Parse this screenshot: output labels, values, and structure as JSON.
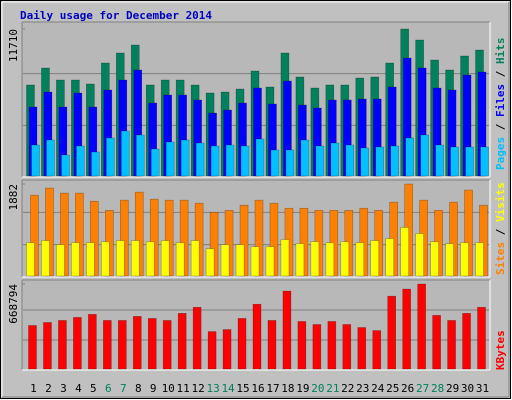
{
  "title": "Daily usage for December 2014",
  "separator": "/",
  "categories": [
    "1",
    "2",
    "3",
    "4",
    "5",
    "6",
    "7",
    "8",
    "9",
    "10",
    "11",
    "12",
    "13",
    "14",
    "15",
    "16",
    "17",
    "18",
    "19",
    "20",
    "21",
    "22",
    "23",
    "24",
    "25",
    "26",
    "27",
    "28",
    "29",
    "30",
    "31"
  ],
  "category_colors": [
    "#000000",
    "#000000",
    "#000000",
    "#000000",
    "#000000",
    "#00805c",
    "#00805c",
    "#000000",
    "#000000",
    "#000000",
    "#000000",
    "#000000",
    "#00805c",
    "#00805c",
    "#000000",
    "#000000",
    "#000000",
    "#000000",
    "#000000",
    "#00805c",
    "#00805c",
    "#000000",
    "#000000",
    "#000000",
    "#000000",
    "#000000",
    "#00805c",
    "#00805c",
    "#000000",
    "#000000",
    "#000000"
  ],
  "chart_data": [
    {
      "type": "bar",
      "ylim": [
        0,
        11710
      ],
      "yticks": [
        11710
      ],
      "series": [
        {
          "name": "Hits",
          "color": "#00805c",
          "values": [
            7249,
            8603,
            7647,
            7647,
            7329,
            9002,
            9798,
            10435,
            7249,
            7647,
            7647,
            7249,
            6612,
            6691,
            6930,
            8364,
            7090,
            9798,
            7886,
            7010,
            7249,
            7249,
            7807,
            7886,
            9002,
            11710,
            10834,
            9240,
            8444,
            9559,
            10037
          ]
        },
        {
          "name": "Files",
          "color": "#0000ff",
          "values": [
            5497,
            6691,
            5497,
            6612,
            5497,
            6851,
            7647,
            8444,
            5815,
            6452,
            6452,
            6054,
            5019,
            5258,
            5815,
            7010,
            5736,
            7568,
            5656,
            5417,
            6054,
            6054,
            6134,
            6134,
            7090,
            9400,
            8603,
            7010,
            6851,
            8046,
            8285
          ]
        },
        {
          "name": "Pages",
          "color": "#00c0ff",
          "values": [
            2469,
            2868,
            1673,
            2390,
            1912,
            3027,
            3585,
            3266,
            2151,
            2708,
            2868,
            2629,
            2390,
            2469,
            2390,
            2947,
            2071,
            2071,
            2868,
            2390,
            2629,
            2469,
            2230,
            2310,
            2390,
            3027,
            3266,
            2469,
            2310,
            2310,
            2310
          ]
        }
      ]
    },
    {
      "type": "bar",
      "ylim": [
        0,
        1882
      ],
      "yticks": [
        1882
      ],
      "series": [
        {
          "name": "Sites",
          "color": "#ff8000",
          "values": [
            1654,
            1799,
            1696,
            1696,
            1530,
            1344,
            1551,
            1716,
            1572,
            1551,
            1551,
            1489,
            1303,
            1344,
            1448,
            1551,
            1489,
            1386,
            1386,
            1344,
            1344,
            1344,
            1386,
            1344,
            1510,
            1882,
            1551,
            1344,
            1510,
            1758,
            1448
          ]
        },
        {
          "name": "Visits",
          "color": "#ffff00",
          "values": [
            682,
            724,
            641,
            682,
            682,
            703,
            724,
            724,
            703,
            724,
            682,
            724,
            558,
            641,
            641,
            600,
            600,
            744,
            662,
            703,
            682,
            703,
            682,
            724,
            765,
            993,
            869,
            703,
            662,
            682,
            682
          ]
        }
      ]
    },
    {
      "type": "bar",
      "ylim": [
        0,
        668794
      ],
      "yticks": [
        668794
      ],
      "series": [
        {
          "name": "KBytes",
          "color": "#ff0000",
          "values": [
            342366,
            366252,
            382176,
            406062,
            429948,
            382176,
            382176,
            414024,
            398100,
            382176,
            437910,
            485682,
            294594,
            310518,
            398100,
            509568,
            382176,
            613074,
            374214,
            350328,
            374214,
            350328,
            326442,
            302556,
            573264,
            628998,
            668794,
            421986,
            382176,
            437910,
            485682
          ]
        }
      ]
    }
  ]
}
